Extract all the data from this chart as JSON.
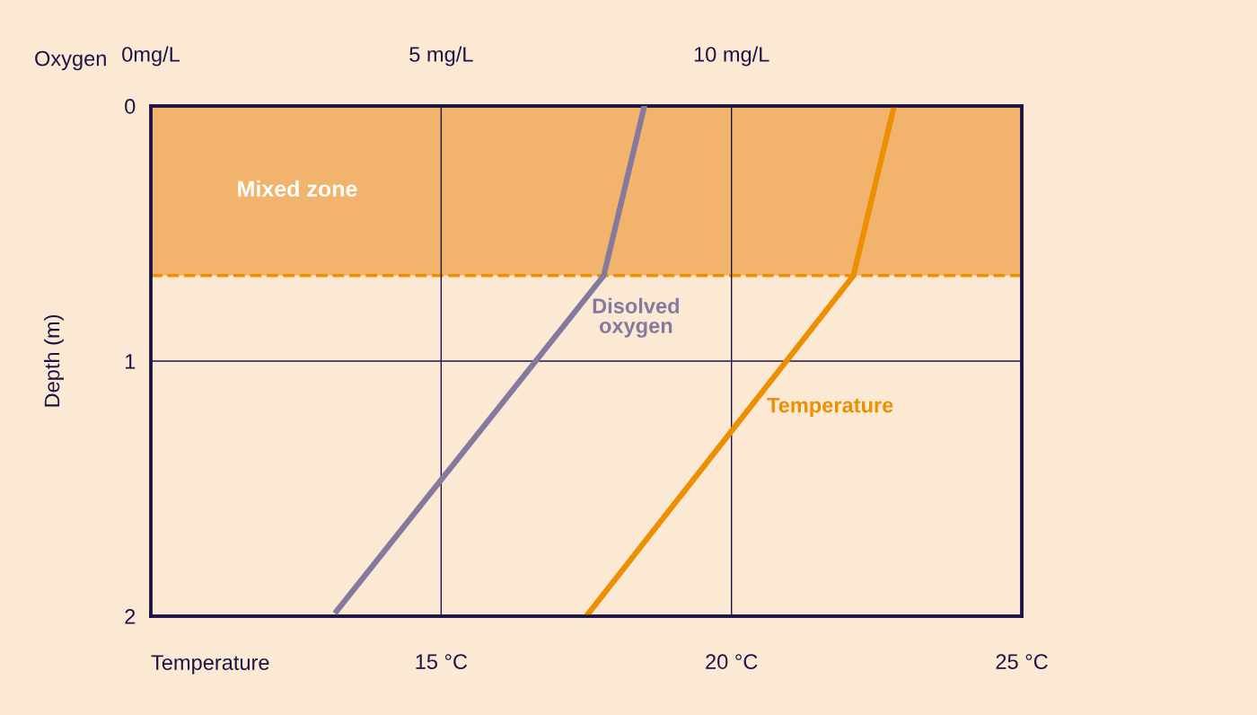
{
  "chart_data": {
    "type": "line",
    "xlabel": "Temperature",
    "x2label": "Oxygen",
    "ylabel": "Depth (m)",
    "xlim": [
      10,
      25
    ],
    "xticks": [
      {
        "value": 15,
        "label": "15 °C"
      },
      {
        "value": 20,
        "label": "20 °C"
      },
      {
        "value": 25,
        "label": "25 °C"
      }
    ],
    "x2lim": [
      0,
      15
    ],
    "x2ticks": [
      {
        "value": 0,
        "label": "0mg/L"
      },
      {
        "value": 5,
        "label": "5 mg/L"
      },
      {
        "value": 10,
        "label": "10 mg/L"
      }
    ],
    "ylim": [
      2,
      0
    ],
    "yticks": [
      0,
      1,
      2
    ],
    "grid": true,
    "legend": false,
    "line_style": "solid",
    "marker": "none",
    "bands": [
      {
        "axis": "y",
        "from": 0,
        "to": 0.665,
        "label": "Mixed zone",
        "color": "#f2b46c"
      }
    ],
    "ref_lines": [
      {
        "axis": "y",
        "value": 0.665,
        "color": "#ec8f00",
        "line_style": "dashed"
      }
    ],
    "series": [
      {
        "name": "Disolved oxygen",
        "color": "#857a9e",
        "axis": "x2",
        "x": [
          8.5,
          7.8,
          3.2
        ],
        "values": [
          0,
          0.665,
          1.98
        ]
      },
      {
        "name": "Temperature",
        "color": "#ec8f00",
        "x": [
          22.8,
          22.1,
          17.5
        ],
        "values": [
          0,
          0.665,
          2
        ]
      }
    ]
  }
}
